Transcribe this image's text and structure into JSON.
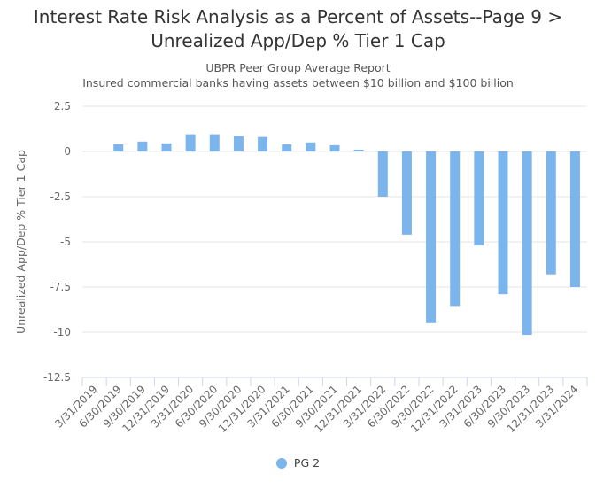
{
  "header": {
    "title_line1": "Interest Rate Risk Analysis as a Percent of Assets--Page 9 >",
    "title_line2": "Unrealized App/Dep % Tier 1 Cap",
    "subtitle_line1": "UBPR Peer Group Average Report",
    "subtitle_line2": "Insured commercial banks having assets between $10 billion and $100 billion"
  },
  "colors": {
    "series": "#7cb5ec",
    "grid": "#e6e6e6",
    "axis": "#ccd6eb"
  },
  "chart_data": {
    "type": "bar",
    "title": "Interest Rate Risk Analysis as a Percent of Assets--Page 9 > Unrealized App/Dep % Tier 1 Cap",
    "subtitle": "UBPR Peer Group Average Report — Insured commercial banks having assets between $10 billion and $100 billion",
    "xlabel": "",
    "ylabel": "Unrealized App/Dep % Tier 1 Cap",
    "ylim": [
      -12.5,
      2.5
    ],
    "yticks": [
      2.5,
      0,
      -2.5,
      -5,
      -7.5,
      -10,
      -12.5
    ],
    "ytick_labels": [
      "2.5",
      "0",
      "-2.5",
      "-5",
      "-7.5",
      "-10",
      "-12.5"
    ],
    "grid": true,
    "legend_position": "bottom-center",
    "categories": [
      "3/31/2019",
      "6/30/2019",
      "9/30/2019",
      "12/31/2019",
      "3/31/2020",
      "6/30/2020",
      "9/30/2020",
      "12/31/2020",
      "3/31/2021",
      "6/30/2021",
      "9/30/2021",
      "12/31/2021",
      "3/31/2022",
      "6/30/2022",
      "9/30/2022",
      "12/31/2022",
      "3/31/2023",
      "6/30/2023",
      "9/30/2023",
      "12/31/2023",
      "3/31/2024"
    ],
    "series": [
      {
        "name": "PG 2",
        "values": [
          null,
          0.4,
          0.55,
          0.45,
          0.95,
          0.95,
          0.85,
          0.8,
          0.4,
          0.5,
          0.35,
          0.1,
          -2.5,
          -4.6,
          -9.5,
          -8.55,
          -5.2,
          -7.9,
          -10.15,
          -6.8,
          -7.5
        ]
      }
    ]
  }
}
